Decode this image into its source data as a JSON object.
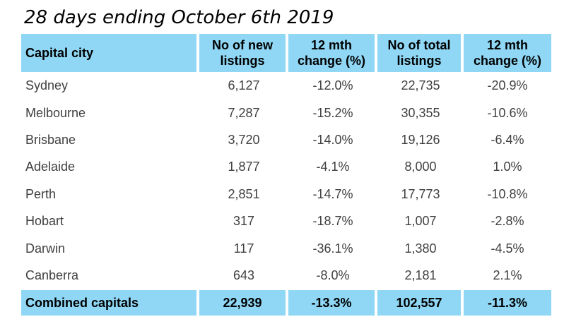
{
  "title": "28 days ending October 6th 2019",
  "headers": {
    "city": "Capital city",
    "new_listings": [
      "No of new",
      "listings"
    ],
    "new_change": [
      "12 mth",
      "change (%)"
    ],
    "total_listings": [
      "No of total",
      "listings"
    ],
    "total_change": [
      "12 mth",
      "change (%)"
    ]
  },
  "rows": [
    {
      "city": "Sydney",
      "new_listings": "6,127",
      "new_change": "-12.0%",
      "total_listings": "22,735",
      "total_change": "-20.9%"
    },
    {
      "city": "Melbourne",
      "new_listings": "7,287",
      "new_change": "-15.2%",
      "total_listings": "30,355",
      "total_change": "-10.6%"
    },
    {
      "city": "Brisbane",
      "new_listings": "3,720",
      "new_change": "-14.0%",
      "total_listings": "19,126",
      "total_change": "-6.4%"
    },
    {
      "city": "Adelaide",
      "new_listings": "1,877",
      "new_change": "-4.1%",
      "total_listings": "8,000",
      "total_change": "1.0%"
    },
    {
      "city": "Perth",
      "new_listings": "2,851",
      "new_change": "-14.7%",
      "total_listings": "17,773",
      "total_change": "-10.8%"
    },
    {
      "city": "Hobart",
      "new_listings": "317",
      "new_change": "-18.7%",
      "total_listings": "1,007",
      "total_change": "-2.8%"
    },
    {
      "city": "Darwin",
      "new_listings": "117",
      "new_change": "-36.1%",
      "total_listings": "1,380",
      "total_change": "-4.5%"
    },
    {
      "city": "Canberra",
      "new_listings": "643",
      "new_change": "-8.0%",
      "total_listings": "2,181",
      "total_change": "2.1%"
    }
  ],
  "total": {
    "city": "Combined capitals",
    "new_listings": "22,939",
    "new_change": "-13.3%",
    "total_listings": "102,557",
    "total_change": "-11.3%"
  },
  "colors": {
    "header_bg": "#8fd7f5",
    "body_text": "#404040"
  }
}
